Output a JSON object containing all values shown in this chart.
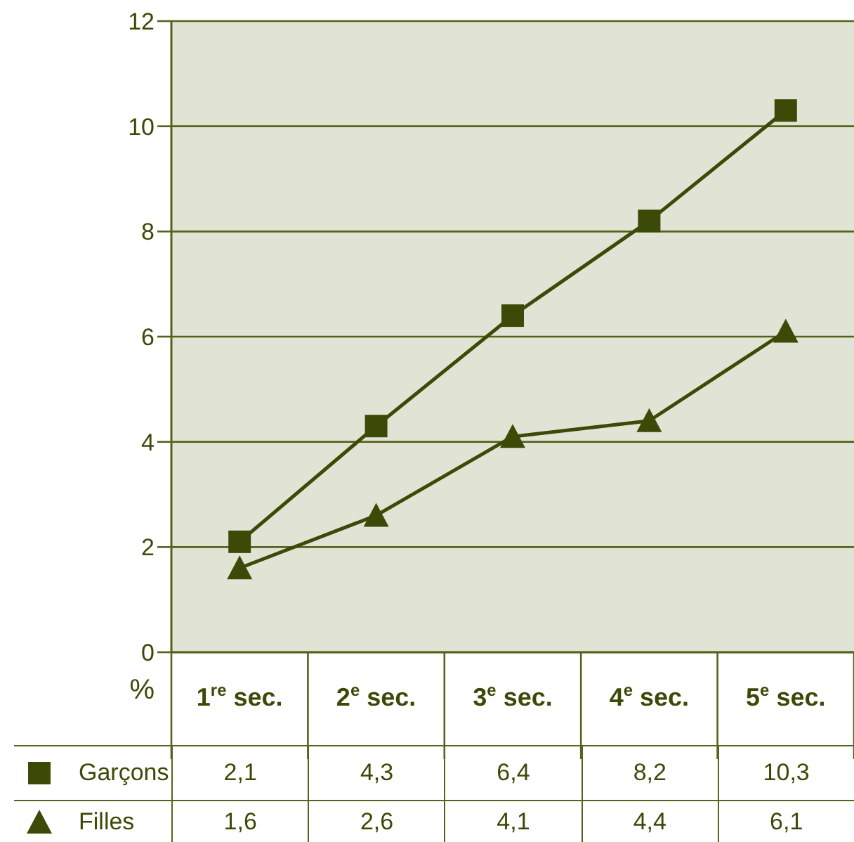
{
  "chart_data": {
    "type": "line",
    "categories": [
      "1$^{re}$ sec.",
      "2$^{e}$ sec.",
      "3$^{e}$ sec.",
      "4$^{e}$ sec.",
      "5$^{e}$ sec."
    ],
    "ylabel": "%",
    "ylim": [
      0,
      12
    ],
    "yticks": [
      0,
      2,
      4,
      6,
      8,
      10,
      12
    ],
    "grid": "y",
    "legend": "bottom",
    "line_style": "solid",
    "series": [
      {
        "name": "Garçons",
        "color": "#3b4a06",
        "marker": "square",
        "values": [
          2.1,
          4.3,
          6.4,
          8.2,
          10.3
        ],
        "value_labels": [
          "2,1",
          "4,3",
          "6,4",
          "8,2",
          "10,3"
        ]
      },
      {
        "name": "Filles",
        "color": "#3b4a06",
        "marker": "triangle",
        "values": [
          1.6,
          2.6,
          4.1,
          4.4,
          6.1
        ],
        "value_labels": [
          "1,6",
          "2,6",
          "4,1",
          "4,4",
          "6,1"
        ]
      }
    ]
  }
}
